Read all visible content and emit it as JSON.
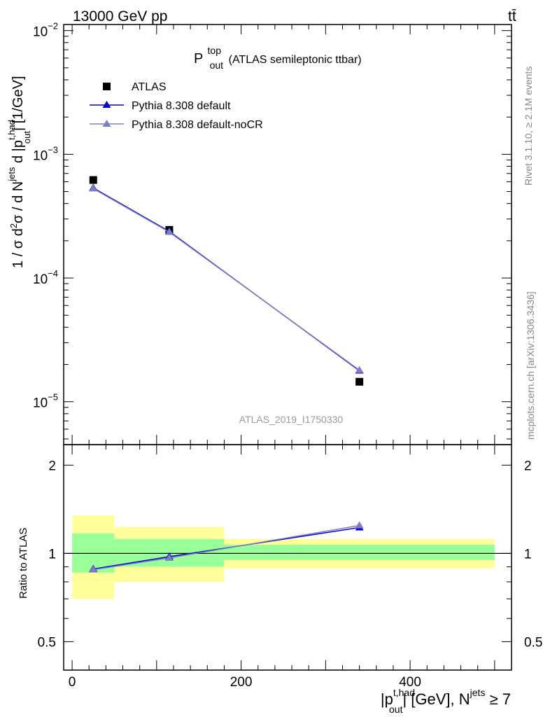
{
  "header": {
    "energy": "13000 GeV pp",
    "process": "tt̄"
  },
  "side_labels": {
    "rivet": "Rivet 3.1.10, ≥ 2.1M events",
    "mcplots": "mcplots.cern.ch [arXiv:1306.3436]"
  },
  "chart_data": [
    {
      "type": "scatter",
      "panel": "main",
      "title": {
        "main": "P",
        "sup": "top",
        "sub": "out",
        "rest": " (ATLAS semileptonic ttbar)"
      },
      "analysis_id": "ATLAS_2019_I1750330",
      "ylabel": "1 / σ d²σ / d N^jets d |p_out^t,had| [1/GeV]",
      "yscale": "log",
      "ylim": [
        4.5e-06,
        0.0112
      ],
      "xlim": [
        -10,
        520
      ],
      "y_ticks": [
        {
          "value": 1e-05,
          "base": "10",
          "exp": "−5"
        },
        {
          "value": 0.0001,
          "base": "10",
          "exp": "−4"
        },
        {
          "value": 0.001,
          "base": "10",
          "exp": "−3"
        },
        {
          "value": 0.01,
          "base": "10",
          "exp": "−2"
        }
      ],
      "legend_position": "top-left",
      "series": [
        {
          "name": "ATLAS",
          "marker": "square",
          "color": "#000000",
          "x": [
            25,
            115,
            340
          ],
          "y": [
            0.00062,
            0.000245,
            1.45e-05
          ]
        },
        {
          "name": "Pythia 8.308 default",
          "marker": "triangle",
          "color": "#0000cc",
          "x": [
            25,
            115,
            340
          ],
          "y": [
            0.000535,
            0.000238,
            1.78e-05
          ]
        },
        {
          "name": "Pythia 8.308 default-noCR",
          "marker": "triangle",
          "color": "#7f7fbf",
          "x": [
            25,
            115,
            340
          ],
          "y": [
            0.000528,
            0.000235,
            1.8e-05
          ]
        }
      ]
    },
    {
      "type": "scatter",
      "panel": "ratio",
      "ylabel": "Ratio to ATLAS",
      "xlabel": "|p_out^t,had| [GeV], N^jets ≥ 7",
      "xlim": [
        -10,
        520
      ],
      "ylim": [
        0.4,
        2.35
      ],
      "x_ticks": [
        0,
        200,
        400
      ],
      "y_ticks": [
        0.5,
        1,
        2
      ],
      "y_tick_labels": [
        "0.5",
        "1",
        "2"
      ],
      "bands": {
        "bins": [
          [
            0,
            50
          ],
          [
            50,
            180
          ],
          [
            180,
            500
          ]
        ],
        "stat": [
          [
            0.86,
            1.17
          ],
          [
            0.9,
            1.12
          ],
          [
            0.95,
            1.07
          ]
        ],
        "total": [
          [
            0.7,
            1.35
          ],
          [
            0.8,
            1.23
          ],
          [
            0.89,
            1.12
          ]
        ],
        "stat_color": "#99ff99",
        "total_color": "#ffff99"
      },
      "series": [
        {
          "name": "Pythia 8.308 default",
          "color": "#0000cc",
          "x": [
            25,
            115,
            340
          ],
          "y": [
            0.885,
            0.975,
            1.225
          ]
        },
        {
          "name": "Pythia 8.308 default-noCR",
          "color": "#7f7fbf",
          "x": [
            25,
            115,
            340
          ],
          "y": [
            0.88,
            0.965,
            1.245
          ]
        }
      ]
    }
  ]
}
